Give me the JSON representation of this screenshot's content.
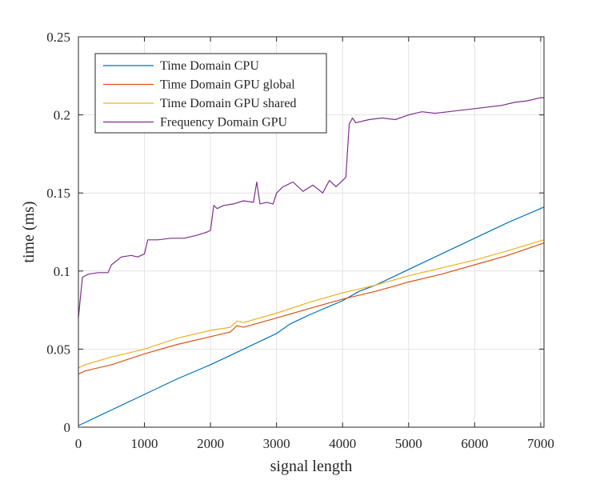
{
  "chart_data": {
    "type": "line",
    "title": "",
    "xlabel": "signal length",
    "ylabel": "time (ms)",
    "xlim": [
      0,
      7050
    ],
    "ylim": [
      0,
      0.25
    ],
    "xticks": [
      0,
      1000,
      2000,
      3000,
      4000,
      5000,
      6000,
      7000
    ],
    "yticks": [
      0,
      0.05,
      0.1,
      0.15,
      0.2,
      0.25
    ],
    "xtick_labels": [
      "0",
      "1000",
      "2000",
      "3000",
      "4000",
      "5000",
      "6000",
      "7000"
    ],
    "ytick_labels": [
      "0",
      "0.05",
      "0.1",
      "0.15",
      "0.2",
      "0.25"
    ],
    "grid": true,
    "legend_position": "top-left",
    "series": [
      {
        "name": "Time Domain CPU",
        "color": "#0072BD",
        "x": [
          0,
          500,
          1000,
          1500,
          2000,
          2500,
          2800,
          3000,
          3200,
          3500,
          4000,
          4250,
          4500,
          5000,
          5500,
          6000,
          6500,
          7050
        ],
        "y": [
          0.001,
          0.011,
          0.021,
          0.031,
          0.04,
          0.05,
          0.056,
          0.06,
          0.066,
          0.072,
          0.081,
          0.087,
          0.091,
          0.101,
          0.111,
          0.121,
          0.131,
          0.141
        ]
      },
      {
        "name": "Time Domain GPU global",
        "color": "#D95319",
        "x": [
          0,
          100,
          500,
          1000,
          1500,
          2000,
          2300,
          2400,
          2500,
          3000,
          3500,
          4000,
          4300,
          4500,
          5000,
          5500,
          6000,
          6500,
          7050
        ],
        "y": [
          0.034,
          0.036,
          0.04,
          0.047,
          0.053,
          0.058,
          0.061,
          0.065,
          0.064,
          0.07,
          0.076,
          0.082,
          0.085,
          0.087,
          0.093,
          0.098,
          0.104,
          0.11,
          0.118
        ]
      },
      {
        "name": "Time Domain GPU shared",
        "color": "#EDB120",
        "x": [
          0,
          100,
          500,
          1000,
          1500,
          2000,
          2300,
          2400,
          2500,
          3000,
          3500,
          4000,
          4500,
          5000,
          5500,
          6000,
          6500,
          7050
        ],
        "y": [
          0.038,
          0.04,
          0.045,
          0.05,
          0.057,
          0.062,
          0.064,
          0.068,
          0.067,
          0.073,
          0.08,
          0.086,
          0.091,
          0.097,
          0.102,
          0.107,
          0.113,
          0.12
        ]
      },
      {
        "name": "Frequency Domain  GPU",
        "color": "#7E2F8E",
        "x": [
          0,
          60,
          150,
          300,
          450,
          500,
          650,
          800,
          900,
          1000,
          1050,
          1200,
          1400,
          1600,
          1800,
          1950,
          2000,
          2050,
          2100,
          2200,
          2350,
          2500,
          2650,
          2700,
          2750,
          2850,
          2950,
          3000,
          3100,
          3250,
          3400,
          3550,
          3700,
          3800,
          3900,
          4000,
          4050,
          4100,
          4150,
          4200,
          4400,
          4600,
          4800,
          5000,
          5200,
          5400,
          5600,
          5800,
          6000,
          6200,
          6400,
          6600,
          6800,
          7000,
          7050
        ],
        "y": [
          0.07,
          0.096,
          0.098,
          0.099,
          0.099,
          0.104,
          0.109,
          0.11,
          0.109,
          0.111,
          0.12,
          0.12,
          0.121,
          0.121,
          0.123,
          0.125,
          0.126,
          0.142,
          0.14,
          0.142,
          0.143,
          0.145,
          0.144,
          0.157,
          0.143,
          0.144,
          0.143,
          0.15,
          0.154,
          0.157,
          0.151,
          0.155,
          0.15,
          0.158,
          0.154,
          0.158,
          0.16,
          0.194,
          0.198,
          0.195,
          0.197,
          0.198,
          0.197,
          0.2,
          0.202,
          0.201,
          0.202,
          0.203,
          0.204,
          0.205,
          0.206,
          0.208,
          0.209,
          0.211,
          0.211
        ]
      }
    ]
  }
}
